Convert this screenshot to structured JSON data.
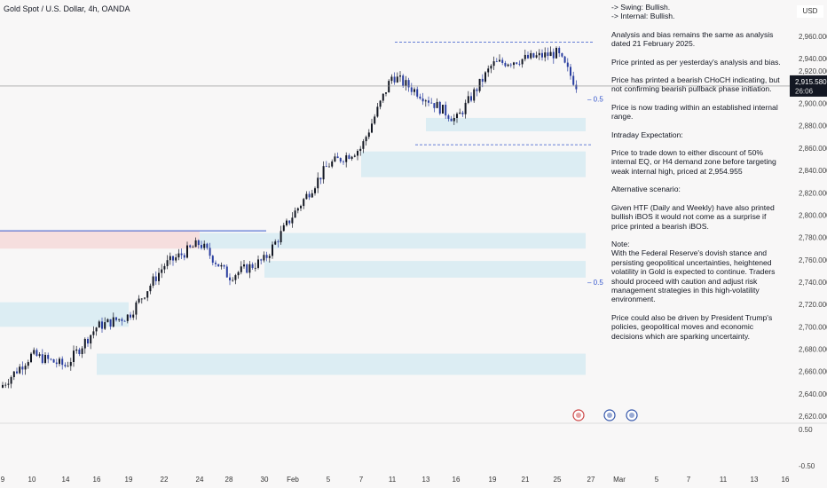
{
  "header": {
    "title": "Gold Spot / U.S. Dollar, 4h, OANDA",
    "currency": "USD"
  },
  "price_badge": {
    "price": "2,915.580",
    "countdown": "26:06"
  },
  "notes": [
    "-> Swing:  Bullish.\n-> Internal:  Bullish.",
    "Analysis and bias remains the same as analysis dated 21 February 2025.",
    "Price printed as per yesterday's analysis and bias.",
    "Price has printed a bearish CHoCH indicating, but not confirming bearish pullback phase initiation.",
    "Price is now trading within an established internal range.",
    "Intraday Expectation:",
    "Price to trade down to either discount of 50% internal EQ, or H4 demand zone before targeting weak internal high, priced at 2,954.955",
    "Alternative scenario:",
    "Given HTF (Daily and Weekly) have also printed bullish iBOS it would not come as a surprise if price printed a bearish iBOS.",
    "Note:\nWith the Federal Reserve's dovish stance and persisting geopolitical uncertainties, heightened volatility in Gold is expected to continue. Traders should proceed with caution and adjust risk management strategies in this high-volatility environment.",
    "Price could also be driven by President Trump's policies, geopolitical moves and economic decisions which are sparking uncertainty."
  ],
  "eq_labels": [
    "0.5",
    "0.5"
  ],
  "indicator_axis": [
    "0.50",
    "-0.50"
  ],
  "colors": {
    "up": "#131722",
    "down": "#2a3ea0",
    "demand_zone": "#dcedf3",
    "supply_zone": "#f6dede",
    "price_line": "#888888",
    "badge": "#131722"
  },
  "chart_data": {
    "type": "candlestick",
    "title": "Gold Spot / U.S. Dollar, 4h, OANDA",
    "x_ticks": [
      "9",
      "10",
      "14",
      "16",
      "19",
      "22",
      "24",
      "28",
      "30",
      "Feb",
      "5",
      "7",
      "11",
      "13",
      "16",
      "19",
      "21",
      "25",
      "27",
      "Mar",
      "5",
      "7",
      "11",
      "13",
      "16"
    ],
    "y_ticks": [
      2960,
      2940,
      2920,
      2900,
      2880,
      2860,
      2840,
      2820,
      2800,
      2780,
      2760,
      2740,
      2720,
      2700,
      2680,
      2660,
      2640,
      2620
    ],
    "ylim": [
      2612,
      2966
    ],
    "approx_close_at_ticks": [
      2648,
      2675,
      2665,
      2700,
      2710,
      2755,
      2775,
      2745,
      2760,
      2800,
      2845,
      2860,
      2925,
      2905,
      2885,
      2935,
      2940,
      2945
    ],
    "last_price": 2915.58,
    "weak_internal_high": 2954.955,
    "zones": [
      {
        "type": "demand",
        "from": "13",
        "to": "27",
        "low": 2875,
        "high": 2887
      },
      {
        "type": "demand",
        "from": "7",
        "to": "27",
        "low": 2834,
        "high": 2857
      },
      {
        "type": "demand",
        "from": "24",
        "to": "27",
        "low": 2770,
        "high": 2784
      },
      {
        "type": "supply",
        "from": "9",
        "to": "24",
        "low": 2770,
        "high": 2786
      },
      {
        "type": "demand",
        "from": "30",
        "to": "27",
        "low": 2744,
        "high": 2759
      },
      {
        "type": "demand",
        "from": "16",
        "to": "27",
        "low": 2657,
        "high": 2676
      },
      {
        "type": "demand",
        "from": "9",
        "to": "19",
        "low": 2700,
        "high": 2722
      }
    ]
  }
}
